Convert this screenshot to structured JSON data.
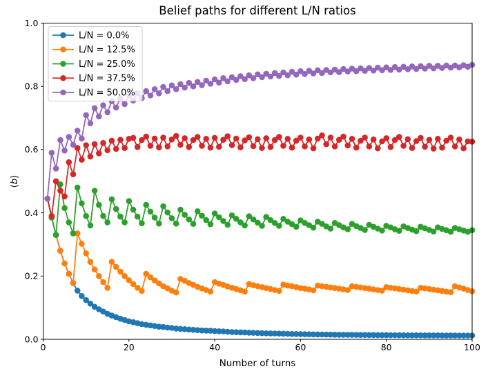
{
  "chart_data": {
    "type": "line",
    "title": "Belief paths for different L/N ratios",
    "xlabel": "Number of turns",
    "ylabel": "⟨b⟩",
    "xlim": [
      0,
      100
    ],
    "ylim": [
      0.0,
      1.0
    ],
    "grid": false,
    "legend_position": "upper left",
    "xticks": [
      0,
      20,
      40,
      60,
      80,
      100
    ],
    "xtick_labels": [
      "0",
      "20",
      "40",
      "60",
      "80",
      "100"
    ],
    "yticks": [
      0.0,
      0.2,
      0.4,
      0.6,
      0.8,
      1.0
    ],
    "ytick_labels": [
      "0.0",
      "0.2",
      "0.4",
      "0.6",
      "0.8",
      "1.0"
    ],
    "x_start": 1,
    "series": [
      {
        "name": "L/N = 0.0%",
        "color": "#1f77b4",
        "values": [
          0.445,
          0.385,
          0.33,
          0.28,
          0.24,
          0.207,
          0.178,
          0.154,
          0.137,
          0.124,
          0.113,
          0.103,
          0.095,
          0.088,
          0.081,
          0.075,
          0.07,
          0.065,
          0.061,
          0.057,
          0.054,
          0.051,
          0.048,
          0.046,
          0.044,
          0.042,
          0.04,
          0.039,
          0.037,
          0.036,
          0.034,
          0.033,
          0.032,
          0.031,
          0.03,
          0.029,
          0.028,
          0.0275,
          0.027,
          0.026,
          0.0255,
          0.025,
          0.024,
          0.023,
          0.0225,
          0.022,
          0.0215,
          0.021,
          0.0205,
          0.02,
          0.0195,
          0.019,
          0.0188,
          0.0185,
          0.018,
          0.0178,
          0.0175,
          0.017,
          0.0168,
          0.0165,
          0.0162,
          0.016,
          0.0158,
          0.0155,
          0.0152,
          0.015,
          0.0148,
          0.0147,
          0.0145,
          0.0144,
          0.0142,
          0.0141,
          0.0139,
          0.0138,
          0.0137,
          0.0136,
          0.0135,
          0.0134,
          0.0133,
          0.0132,
          0.0131,
          0.013,
          0.0129,
          0.0128,
          0.0127,
          0.0127,
          0.0126,
          0.0126,
          0.0125,
          0.0125,
          0.0124,
          0.0124,
          0.0123,
          0.0123,
          0.0122,
          0.0122,
          0.0121,
          0.0121,
          0.012,
          0.012
        ]
      },
      {
        "name": "L/N = 12.5%",
        "color": "#ff7f0e",
        "values": [
          0.445,
          0.385,
          0.33,
          0.28,
          0.24,
          0.207,
          0.178,
          0.335,
          0.302,
          0.272,
          0.245,
          0.221,
          0.2,
          0.181,
          0.163,
          0.245,
          0.229,
          0.214,
          0.2,
          0.187,
          0.175,
          0.163,
          0.153,
          0.207,
          0.196,
          0.186,
          0.177,
          0.168,
          0.161,
          0.154,
          0.148,
          0.191,
          0.185,
          0.178,
          0.172,
          0.166,
          0.161,
          0.156,
          0.151,
          0.181,
          0.176,
          0.172,
          0.167,
          0.163,
          0.159,
          0.155,
          0.151,
          0.175,
          0.171,
          0.168,
          0.165,
          0.162,
          0.159,
          0.156,
          0.153,
          0.173,
          0.17,
          0.168,
          0.165,
          0.162,
          0.16,
          0.158,
          0.155,
          0.17,
          0.168,
          0.166,
          0.164,
          0.162,
          0.16,
          0.158,
          0.156,
          0.168,
          0.166,
          0.164,
          0.162,
          0.16,
          0.158,
          0.156,
          0.154,
          0.165,
          0.163,
          0.161,
          0.159,
          0.157,
          0.155,
          0.153,
          0.151,
          0.163,
          0.161,
          0.159,
          0.157,
          0.155,
          0.153,
          0.151,
          0.149,
          0.168,
          0.164,
          0.16,
          0.156,
          0.152
        ]
      },
      {
        "name": "L/N = 25.0%",
        "color": "#2ca02c",
        "values": [
          0.445,
          0.385,
          0.33,
          0.49,
          0.415,
          0.37,
          0.335,
          0.48,
          0.43,
          0.39,
          0.36,
          0.47,
          0.425,
          0.39,
          0.37,
          0.443,
          0.412,
          0.388,
          0.37,
          0.437,
          0.41,
          0.388,
          0.367,
          0.425,
          0.404,
          0.385,
          0.366,
          0.421,
          0.401,
          0.383,
          0.366,
          0.41,
          0.394,
          0.379,
          0.365,
          0.405,
          0.391,
          0.377,
          0.364,
          0.398,
          0.386,
          0.374,
          0.362,
          0.392,
          0.381,
          0.37,
          0.36,
          0.389,
          0.379,
          0.369,
          0.359,
          0.387,
          0.377,
          0.368,
          0.359,
          0.381,
          0.372,
          0.364,
          0.356,
          0.376,
          0.368,
          0.361,
          0.353,
          0.372,
          0.365,
          0.357,
          0.35,
          0.368,
          0.361,
          0.354,
          0.348,
          0.365,
          0.358,
          0.352,
          0.346,
          0.362,
          0.356,
          0.35,
          0.344,
          0.359,
          0.354,
          0.348,
          0.343,
          0.357,
          0.352,
          0.347,
          0.342,
          0.356,
          0.351,
          0.346,
          0.341,
          0.354,
          0.349,
          0.345,
          0.34,
          0.352,
          0.348,
          0.344,
          0.34,
          0.345
        ]
      },
      {
        "name": "L/N = 37.5%",
        "color": "#d62728",
        "values": [
          0.445,
          0.39,
          0.5,
          0.47,
          0.452,
          0.56,
          0.522,
          0.605,
          0.568,
          0.614,
          0.578,
          0.617,
          0.588,
          0.621,
          0.598,
          0.628,
          0.602,
          0.631,
          0.605,
          0.634,
          0.637,
          0.608,
          0.63,
          0.641,
          0.612,
          0.635,
          0.607,
          0.638,
          0.61,
          0.632,
          0.643,
          0.615,
          0.636,
          0.608,
          0.63,
          0.64,
          0.612,
          0.634,
          0.606,
          0.637,
          0.609,
          0.631,
          0.642,
          0.614,
          0.635,
          0.607,
          0.629,
          0.639,
          0.611,
          0.633,
          0.605,
          0.636,
          0.608,
          0.63,
          0.64,
          0.612,
          0.634,
          0.606,
          0.628,
          0.638,
          0.61,
          0.632,
          0.604,
          0.635,
          0.645,
          0.617,
          0.638,
          0.61,
          0.631,
          0.641,
          0.613,
          0.634,
          0.606,
          0.628,
          0.638,
          0.61,
          0.632,
          0.604,
          0.626,
          0.636,
          0.608,
          0.63,
          0.64,
          0.612,
          0.633,
          0.605,
          0.627,
          0.637,
          0.609,
          0.631,
          0.603,
          0.634,
          0.606,
          0.628,
          0.638,
          0.61,
          0.632,
          0.604,
          0.626,
          0.625
        ]
      },
      {
        "name": "L/N = 50.0%",
        "color": "#9467bd",
        "values": [
          0.445,
          0.59,
          0.54,
          0.63,
          0.597,
          0.64,
          0.615,
          0.66,
          0.635,
          0.709,
          0.683,
          0.731,
          0.705,
          0.74,
          0.718,
          0.753,
          0.733,
          0.762,
          0.744,
          0.771,
          0.755,
          0.778,
          0.763,
          0.785,
          0.771,
          0.791,
          0.778,
          0.798,
          0.785,
          0.803,
          0.791,
          0.807,
          0.796,
          0.811,
          0.8,
          0.814,
          0.804,
          0.818,
          0.808,
          0.822,
          0.812,
          0.826,
          0.816,
          0.829,
          0.82,
          0.832,
          0.823,
          0.835,
          0.826,
          0.838,
          0.829,
          0.84,
          0.831,
          0.842,
          0.833,
          0.844,
          0.835,
          0.846,
          0.837,
          0.848,
          0.839,
          0.849,
          0.841,
          0.851,
          0.842,
          0.852,
          0.844,
          0.853,
          0.845,
          0.855,
          0.847,
          0.856,
          0.848,
          0.857,
          0.849,
          0.858,
          0.85,
          0.859,
          0.851,
          0.86,
          0.852,
          0.861,
          0.853,
          0.862,
          0.854,
          0.863,
          0.855,
          0.864,
          0.856,
          0.865,
          0.857,
          0.865,
          0.858,
          0.866,
          0.859,
          0.866,
          0.86,
          0.867,
          0.862,
          0.868
        ]
      }
    ]
  },
  "style_hints": {
    "legend_border_color": "#cccccc",
    "spine_color": "#000000",
    "background_color": "#ffffff"
  }
}
